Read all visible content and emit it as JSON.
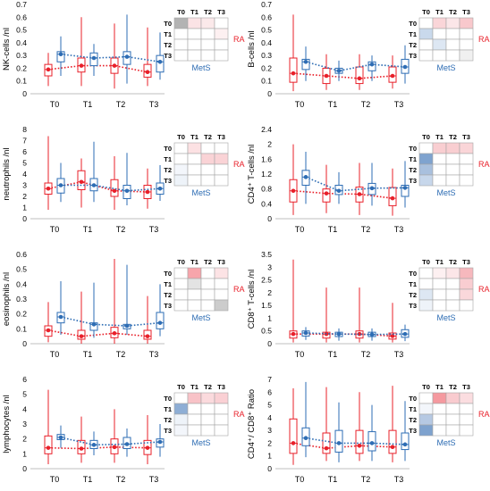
{
  "colors": {
    "ra": "#e8202a",
    "mets": "#2e6db4",
    "axis": "#bfbfbf",
    "tick_text": "#595959",
    "grid_border": "#a6a6a6"
  },
  "labels": {
    "time_points": [
      "T0",
      "T1",
      "T2",
      "T3"
    ],
    "ra": "RA",
    "mets": "MetS"
  },
  "chart_data": [
    {
      "type": "box",
      "ylabel": "NK-cells /nl",
      "ylim": [
        0,
        0.7
      ],
      "yticks": [
        "0",
        "0.1",
        "0.2",
        "0.3",
        "0.4",
        "0.5",
        "0.6",
        "0.7"
      ],
      "categories": [
        "T0",
        "T1",
        "T2",
        "T3"
      ],
      "series": [
        {
          "name": "RA",
          "color": "#e8202a",
          "medians": [
            0.19,
            0.22,
            0.22,
            0.17
          ],
          "q1": [
            0.14,
            0.17,
            0.16,
            0.13
          ],
          "q3": [
            0.23,
            0.28,
            0.28,
            0.23
          ],
          "whisker_low": [
            0.06,
            0.06,
            0.04,
            0.06
          ],
          "whisker_high": [
            0.32,
            0.6,
            0.55,
            0.52
          ]
        },
        {
          "name": "MetS",
          "color": "#2e6db4",
          "medians": [
            0.31,
            0.28,
            0.29,
            0.25
          ],
          "q1": [
            0.25,
            0.22,
            0.23,
            0.17
          ],
          "q3": [
            0.33,
            0.32,
            0.33,
            0.3
          ],
          "whisker_low": [
            0.14,
            0.14,
            0.08,
            0.11
          ],
          "whisker_high": [
            0.45,
            0.39,
            0.62,
            0.48
          ]
        }
      ],
      "heatmap": [
        [
          "#b3b3b3",
          "#fbe3e5",
          "#fbe9ea",
          "#ffffff"
        ],
        [
          "#ffffff",
          "#ffffff",
          "#ffffff",
          "#fdf0f1"
        ],
        [
          "#ffffff",
          "#ffffff",
          "#ffffff",
          "#ffffff"
        ],
        [
          "#ffffff",
          "#ffffff",
          "#ffffff",
          "#ffffff"
        ]
      ]
    },
    {
      "type": "box",
      "ylabel": "B-cells /nl",
      "ylim": [
        0,
        0.7
      ],
      "yticks": [
        "0",
        "0.1",
        "0.2",
        "0.3",
        "0.4",
        "0.5",
        "0.6",
        "0.7"
      ],
      "categories": [
        "T0",
        "T1",
        "T2",
        "T3"
      ],
      "series": [
        {
          "name": "RA",
          "color": "#e8202a",
          "medians": [
            0.16,
            0.14,
            0.12,
            0.14
          ],
          "q1": [
            0.09,
            0.08,
            0.08,
            0.09
          ],
          "q3": [
            0.28,
            0.2,
            0.21,
            0.21
          ],
          "whisker_low": [
            0.02,
            0.03,
            0.03,
            0.04
          ],
          "whisker_high": [
            0.62,
            0.31,
            0.31,
            0.3
          ]
        },
        {
          "name": "MetS",
          "color": "#2e6db4",
          "medians": [
            0.25,
            0.18,
            0.23,
            0.21
          ],
          "q1": [
            0.19,
            0.16,
            0.18,
            0.16
          ],
          "q3": [
            0.27,
            0.2,
            0.25,
            0.27
          ],
          "whisker_low": [
            0.1,
            0.1,
            0.1,
            0.08
          ],
          "whisker_high": [
            0.37,
            0.26,
            0.3,
            0.38
          ]
        }
      ],
      "heatmap": [
        [
          "#ffffff",
          "#fad5d8",
          "#fbe6e8",
          "#f8c8cc"
        ],
        [
          "#c9d9ec",
          "#ffffff",
          "#ffffff",
          "#ffffff"
        ],
        [
          "#ffffff",
          "#dde7f3",
          "#ffffff",
          "#ffffff"
        ],
        [
          "#ffffff",
          "#ffffff",
          "#ffffff",
          "#f0f0f0"
        ]
      ]
    },
    {
      "type": "box",
      "ylabel": "neutrophils /nl",
      "ylim": [
        0,
        8
      ],
      "yticks": [
        "0",
        "1",
        "2",
        "3",
        "4",
        "5",
        "6",
        "7",
        "8"
      ],
      "categories": [
        "T0",
        "T1",
        "T2",
        "T3"
      ],
      "series": [
        {
          "name": "RA",
          "color": "#e8202a",
          "medians": [
            2.7,
            3.3,
            2.5,
            2.4
          ],
          "q1": [
            2.2,
            2.6,
            2.0,
            1.8
          ],
          "q3": [
            3.2,
            4.3,
            3.5,
            3.0
          ],
          "whisker_low": [
            0.8,
            1.0,
            0.8,
            0.9
          ],
          "whisker_high": [
            7.4,
            5.4,
            5.6,
            4.5
          ]
        },
        {
          "name": "MetS",
          "color": "#2e6db4",
          "medians": [
            3.0,
            3.0,
            2.5,
            2.7
          ],
          "q1": [
            2.3,
            2.5,
            1.8,
            2.2
          ],
          "q3": [
            3.6,
            3.6,
            3.0,
            3.2
          ],
          "whisker_low": [
            1.5,
            1.5,
            1.2,
            1.6
          ],
          "whisker_high": [
            5.0,
            6.9,
            5.9,
            4.8
          ]
        }
      ],
      "heatmap": [
        [
          "#ffffff",
          "#fce1e3",
          "#ffffff",
          "#ffffff"
        ],
        [
          "#ffffff",
          "#ffffff",
          "#fad3d6",
          "#fad3d6"
        ],
        [
          "#f3f6fb",
          "#ffffff",
          "#ffffff",
          "#ffffff"
        ],
        [
          "#eef3f9",
          "#ffffff",
          "#ffffff",
          "#ffffff"
        ]
      ]
    },
    {
      "type": "box",
      "ylabel": "CD4⁺ T-cells /nl",
      "ylim": [
        0,
        2.4
      ],
      "yticks": [
        "0",
        "0.4",
        "0.8",
        "1.2",
        "1.6",
        "2",
        "2.4"
      ],
      "categories": [
        "T0",
        "T1",
        "T2",
        "T3"
      ],
      "series": [
        {
          "name": "RA",
          "color": "#e8202a",
          "medians": [
            0.75,
            0.68,
            0.66,
            0.55
          ],
          "q1": [
            0.45,
            0.45,
            0.45,
            0.35
          ],
          "q3": [
            1.05,
            0.8,
            0.85,
            0.84
          ],
          "whisker_low": [
            0.1,
            0.15,
            0.1,
            0.08
          ],
          "whisker_high": [
            2.0,
            1.45,
            1.5,
            1.35
          ]
        },
        {
          "name": "MetS",
          "color": "#2e6db4",
          "medians": [
            1.12,
            0.75,
            0.82,
            0.83
          ],
          "q1": [
            0.9,
            0.65,
            0.65,
            0.6
          ],
          "q3": [
            1.3,
            0.9,
            0.95,
            0.9
          ],
          "whisker_low": [
            0.4,
            0.4,
            0.35,
            0.3
          ],
          "whisker_high": [
            1.8,
            1.25,
            1.5,
            1.55
          ]
        }
      ],
      "heatmap": [
        [
          "#ffffff",
          "#f9ced1",
          "#f9ced1",
          "#fad5d8"
        ],
        [
          "#7fa3cf",
          "#ffffff",
          "#ffffff",
          "#ffffff"
        ],
        [
          "#a9c0de",
          "#ffffff",
          "#ffffff",
          "#ffffff"
        ],
        [
          "#c7d7eb",
          "#ffffff",
          "#ffffff",
          "#ffffff"
        ]
      ]
    },
    {
      "type": "box",
      "ylabel": "eosinophils /nl",
      "ylim": [
        0,
        0.6
      ],
      "yticks": [
        "0",
        "0.1",
        "0.2",
        "0.3",
        "0.4",
        "0.5",
        "0.6"
      ],
      "categories": [
        "T0",
        "T1",
        "T2",
        "T3"
      ],
      "series": [
        {
          "name": "RA",
          "color": "#e8202a",
          "medians": [
            0.09,
            0.05,
            0.07,
            0.05
          ],
          "q1": [
            0.05,
            0.03,
            0.04,
            0.03
          ],
          "q3": [
            0.12,
            0.09,
            0.11,
            0.09
          ],
          "whisker_low": [
            0.01,
            0.0,
            0.0,
            0.0
          ],
          "whisker_high": [
            0.28,
            0.35,
            0.57,
            0.32
          ]
        },
        {
          "name": "MetS",
          "color": "#2e6db4",
          "medians": [
            0.18,
            0.13,
            0.12,
            0.14
          ],
          "q1": [
            0.14,
            0.09,
            0.1,
            0.1
          ],
          "q3": [
            0.21,
            0.14,
            0.13,
            0.21
          ],
          "whisker_low": [
            0.06,
            0.04,
            0.06,
            0.05
          ],
          "whisker_high": [
            0.42,
            0.41,
            0.53,
            0.4
          ]
        }
      ],
      "heatmap": [
        [
          "#ffffff",
          "#f7a5ab",
          "#ffffff",
          "#fce3e5"
        ],
        [
          "#ffffff",
          "#e3e3e3",
          "#ffffff",
          "#ffffff"
        ],
        [
          "#ffffff",
          "#ffffff",
          "#ffffff",
          "#ffffff"
        ],
        [
          "#ffffff",
          "#ffffff",
          "#ffffff",
          "#cccccc"
        ]
      ]
    },
    {
      "type": "box",
      "ylabel": "CD8⁺ T-cells /nl",
      "ylim": [
        0,
        3.5
      ],
      "yticks": [
        "0",
        "0.5",
        "1",
        "1.5",
        "2",
        "2.5",
        "3",
        "3.5"
      ],
      "categories": [
        "T0",
        "T1",
        "T2",
        "T3"
      ],
      "series": [
        {
          "name": "RA",
          "color": "#e8202a",
          "medians": [
            0.38,
            0.38,
            0.38,
            0.3
          ],
          "q1": [
            0.22,
            0.22,
            0.22,
            0.18
          ],
          "q3": [
            0.5,
            0.45,
            0.5,
            0.42
          ],
          "whisker_low": [
            0.05,
            0.05,
            0.05,
            0.05
          ],
          "whisker_high": [
            3.3,
            2.2,
            2.2,
            1.6
          ]
        },
        {
          "name": "MetS",
          "color": "#2e6db4",
          "medians": [
            0.42,
            0.38,
            0.36,
            0.38
          ],
          "q1": [
            0.3,
            0.28,
            0.28,
            0.25
          ],
          "q3": [
            0.5,
            0.45,
            0.45,
            0.55
          ],
          "whisker_low": [
            0.15,
            0.12,
            0.12,
            0.1
          ],
          "whisker_high": [
            0.65,
            0.6,
            0.6,
            0.75
          ]
        }
      ],
      "heatmap": [
        [
          "#ffffff",
          "#fdf0f1",
          "#fce6e8",
          "#f6b8bd"
        ],
        [
          "#ffffff",
          "#ffffff",
          "#ffffff",
          "#f9cdd1"
        ],
        [
          "#dde7f3",
          "#ffffff",
          "#ffffff",
          "#fad8db"
        ],
        [
          "#eef3f9",
          "#ffffff",
          "#ffffff",
          "#ffffff"
        ]
      ]
    },
    {
      "type": "box",
      "ylabel": "lymphocytes /nl",
      "ylim": [
        0,
        6
      ],
      "yticks": [
        "0",
        "1",
        "2",
        "3",
        "4",
        "5",
        "6"
      ],
      "categories": [
        "T0",
        "T1",
        "T2",
        "T3"
      ],
      "series": [
        {
          "name": "RA",
          "color": "#e8202a",
          "medians": [
            1.4,
            1.35,
            1.45,
            1.4
          ],
          "q1": [
            1.0,
            1.0,
            1.0,
            0.95
          ],
          "q3": [
            2.2,
            1.9,
            2.0,
            1.9
          ],
          "whisker_low": [
            0.3,
            0.4,
            0.4,
            0.3
          ],
          "whisker_high": [
            5.3,
            3.5,
            4.0,
            3.6
          ]
        },
        {
          "name": "MetS",
          "color": "#2e6db4",
          "medians": [
            2.1,
            1.6,
            1.65,
            1.8
          ],
          "q1": [
            1.95,
            1.35,
            1.35,
            1.45
          ],
          "q3": [
            2.3,
            1.9,
            2.1,
            2.0
          ],
          "whisker_low": [
            1.4,
            0.9,
            0.8,
            0.8
          ],
          "whisker_high": [
            2.9,
            2.5,
            2.7,
            3.0
          ]
        }
      ],
      "heatmap": [
        [
          "#ffffff",
          "#f8c2c7",
          "#fbdadd",
          "#fad0d4"
        ],
        [
          "#8eaed5",
          "#ffffff",
          "#ffffff",
          "#ffffff"
        ],
        [
          "#eef3f9",
          "#ffffff",
          "#ffffff",
          "#ffffff"
        ],
        [
          "#f3f6fb",
          "#ffffff",
          "#ffffff",
          "#ffffff"
        ]
      ]
    },
    {
      "type": "box",
      "ylabel": "CD4⁺/ CD8⁺ Ratio",
      "ylim": [
        0,
        7
      ],
      "yticks": [
        "0",
        "1",
        "2",
        "3",
        "4",
        "5",
        "6",
        "7"
      ],
      "categories": [
        "T0",
        "T1",
        "T2",
        "T3"
      ],
      "series": [
        {
          "name": "RA",
          "color": "#e8202a",
          "medians": [
            2.0,
            1.6,
            1.8,
            1.7
          ],
          "q1": [
            1.2,
            1.2,
            1.2,
            1.2
          ],
          "q3": [
            3.9,
            2.8,
            3.0,
            3.0
          ],
          "whisker_low": [
            0.3,
            0.6,
            0.6,
            0.5
          ],
          "whisker_high": [
            6.3,
            6.4,
            6.0,
            6.5
          ]
        },
        {
          "name": "MetS",
          "color": "#2e6db4",
          "medians": [
            2.4,
            2.0,
            2.0,
            1.9
          ],
          "q1": [
            1.8,
            1.3,
            1.4,
            1.5
          ],
          "q3": [
            3.2,
            3.0,
            2.9,
            2.8
          ],
          "whisker_low": [
            0.9,
            0.5,
            0.6,
            0.6
          ],
          "whisker_high": [
            6.8,
            5.2,
            5.0,
            5.3
          ]
        }
      ],
      "heatmap": [
        [
          "#ffffff",
          "#f5999f",
          "#f9cbcf",
          "#fbdde0"
        ],
        [
          "#f3f6fb",
          "#ffffff",
          "#ffffff",
          "#ffffff"
        ],
        [
          "#b6c9e3",
          "#ffffff",
          "#ffffff",
          "#ffffff"
        ],
        [
          "#7ea2ce",
          "#ffffff",
          "#ffffff",
          "#ffffff"
        ]
      ]
    }
  ]
}
